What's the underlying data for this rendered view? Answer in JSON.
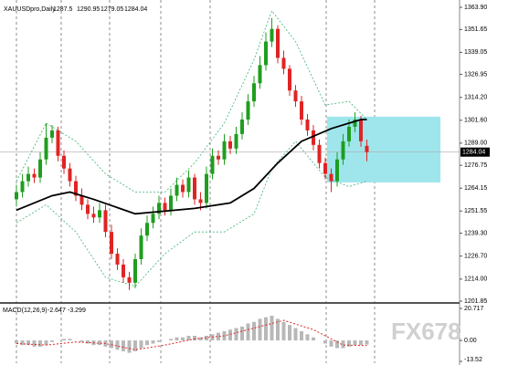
{
  "watermark": "FX678",
  "chart_data": [
    {
      "type": "candlestick",
      "title": "XAUUSDpro,Daily",
      "open": [
        1258,
        1262,
        1268,
        1272,
        1270,
        1280,
        1292,
        1296,
        1282,
        1275,
        1268,
        1260,
        1255,
        1250,
        1248,
        1252,
        1240,
        1228,
        1222,
        1215,
        1212,
        1225,
        1238,
        1245,
        1250,
        1256,
        1252,
        1260,
        1266,
        1262,
        1270,
        1258,
        1256,
        1272,
        1282,
        1280,
        1290,
        1286,
        1294,
        1302,
        1312,
        1322,
        1332,
        1345,
        1352,
        1336,
        1330,
        1318,
        1312,
        1302,
        1296,
        1288,
        1278,
        1272,
        1268,
        1280,
        1290,
        1298,
        1302,
        1287.5
      ],
      "high": [
        1266,
        1272,
        1276,
        1275,
        1284,
        1300,
        1299,
        1298,
        1285,
        1278,
        1271,
        1264,
        1258,
        1254,
        1256,
        1255,
        1244,
        1231,
        1225,
        1218,
        1228,
        1242,
        1249,
        1254,
        1260,
        1259,
        1264,
        1270,
        1269,
        1274,
        1272,
        1262,
        1276,
        1286,
        1285,
        1294,
        1293,
        1298,
        1306,
        1316,
        1326,
        1337,
        1350,
        1358,
        1354,
        1340,
        1332,
        1321,
        1315,
        1305,
        1299,
        1291,
        1281,
        1275,
        1284,
        1294,
        1302,
        1306,
        1304,
        1290.95
      ],
      "low": [
        1254,
        1259,
        1265,
        1267,
        1267,
        1277,
        1289,
        1279,
        1272,
        1265,
        1257,
        1252,
        1247,
        1245,
        1245,
        1237,
        1225,
        1219,
        1212,
        1208,
        1209,
        1222,
        1235,
        1242,
        1247,
        1249,
        1249,
        1257,
        1259,
        1259,
        1255,
        1252,
        1253,
        1269,
        1277,
        1277,
        1283,
        1283,
        1291,
        1299,
        1309,
        1319,
        1329,
        1342,
        1333,
        1327,
        1315,
        1309,
        1299,
        1293,
        1285,
        1275,
        1269,
        1262,
        1265,
        1277,
        1287,
        1295,
        1287,
        1279.05
      ],
      "close": [
        1262,
        1268,
        1272,
        1270,
        1280,
        1292,
        1296,
        1282,
        1275,
        1268,
        1260,
        1255,
        1250,
        1248,
        1252,
        1240,
        1228,
        1222,
        1215,
        1212,
        1225,
        1238,
        1245,
        1250,
        1256,
        1252,
        1260,
        1266,
        1262,
        1270,
        1258,
        1256,
        1272,
        1282,
        1280,
        1290,
        1286,
        1294,
        1302,
        1312,
        1322,
        1332,
        1345,
        1352,
        1336,
        1330,
        1318,
        1312,
        1302,
        1296,
        1288,
        1278,
        1272,
        1268,
        1280,
        1290,
        1298,
        1302,
        1290,
        1284.04
      ],
      "up_color": "#1f9e1f",
      "down_color": "#e02424",
      "ma": {
        "x": [
          0,
          6,
          9,
          13,
          20,
          30,
          36,
          40,
          44,
          48,
          53,
          58,
          59
        ],
        "values": [
          1252,
          1260,
          1262,
          1258,
          1250,
          1253,
          1256,
          1264,
          1278,
          1290,
          1297,
          1302,
          1302
        ],
        "color": "#000000"
      },
      "bands": [
        {
          "x": [
            0,
            5,
            10,
            15,
            20,
            25,
            30,
            35,
            40,
            43,
            47,
            52,
            56,
            59
          ],
          "values": [
            1268,
            1300,
            1290,
            1272,
            1262,
            1262,
            1278,
            1300,
            1335,
            1362,
            1345,
            1310,
            1312,
            1302
          ],
          "color": "#3cb371"
        },
        {
          "x": [
            0,
            5,
            10,
            15,
            20,
            25,
            30,
            35,
            40,
            43,
            47,
            52,
            56,
            59
          ],
          "values": [
            1245,
            1255,
            1240,
            1215,
            1210,
            1228,
            1240,
            1240,
            1250,
            1275,
            1290,
            1270,
            1265,
            1268
          ],
          "color": "#3cb371"
        }
      ],
      "highlight": {
        "x": [
          52.3,
          71.4
        ],
        "values": [
          1303.6,
          1267.3
        ],
        "color": "#9ee6ec"
      },
      "ylim": [
        1201.85,
        1363.9
      ],
      "yticks": [
        {
          "value": 1363.9,
          "label": "1363.90"
        },
        1351.65,
        1339.05,
        1326.95,
        {
          "value": 1314.2,
          "label": "1314.20"
        },
        {
          "value": 1301.6,
          "label": "1301.60"
        },
        {
          "value": 1289,
          "label": "1289.00"
        },
        1276.75,
        1264.15,
        1251.55,
        {
          "value": 1239.3,
          "label": "1239.30"
        },
        {
          "value": 1226.7,
          "label": "1226.70"
        },
        {
          "value": 1214,
          "label": "1214.00"
        },
        1201.85
      ]
    },
    {
      "type": "macd",
      "title": "MACD(12,26,9)",
      "series": [
        {
          "values": [
            -2,
            -3,
            -3,
            -4,
            -4,
            -3,
            -1,
            0,
            1,
            1,
            0,
            -1,
            -2,
            -3,
            -3,
            -4,
            -5,
            -6,
            -7,
            -8,
            -7,
            -5,
            -3,
            -2,
            -1,
            0,
            1,
            2,
            2,
            3,
            3,
            2,
            3,
            4,
            5,
            6,
            7,
            8,
            9,
            11,
            12,
            14,
            15,
            16,
            14,
            12,
            10,
            8,
            6,
            4,
            2,
            0,
            -2,
            -4,
            -5,
            -5,
            -4,
            -3,
            -3,
            -2.647
          ],
          "color": "#b8b8b8"
        },
        {
          "x": [
            0,
            5,
            10,
            15,
            20,
            25,
            30,
            35,
            40,
            45,
            50,
            55,
            59
          ],
          "values": [
            -2,
            -3,
            -1,
            -2,
            -6,
            -3,
            1,
            3,
            8,
            13,
            7,
            -3,
            -3.299
          ],
          "color": "#e02424"
        }
      ],
      "y2lim": [
        -13.52,
        20.717
      ],
      "y2ticks": [
        20.717,
        {
          "value": 0,
          "label": "0.00"
        },
        -13.52
      ]
    }
  ]
}
